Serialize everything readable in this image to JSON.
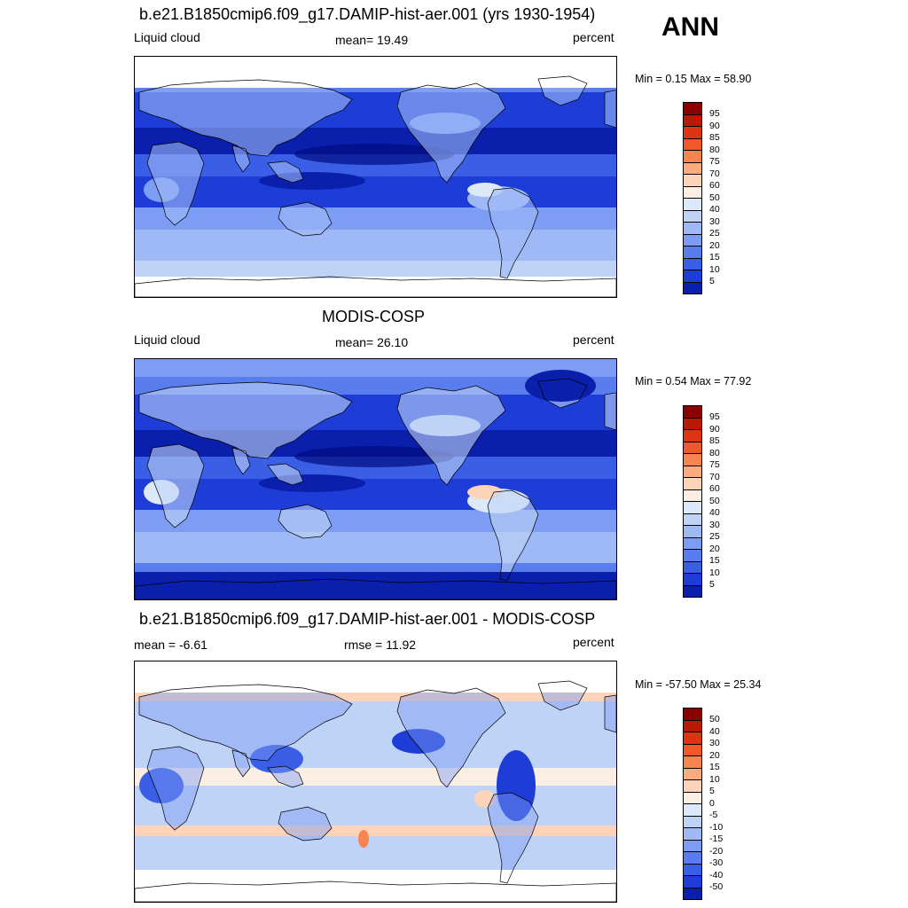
{
  "season": "ANN",
  "panels": [
    {
      "title": "b.e21.B1850cmip6.f09_g17.DAMIP-hist-aer.001 (yrs 1930-1954)",
      "left_label": "Liquid cloud",
      "center_label": "mean=  19.49",
      "right_label": "percent",
      "minmax": "Min =   0.15 Max =  58.90",
      "map": "test",
      "colorbar": "abs"
    },
    {
      "title": "MODIS-COSP",
      "left_label": "Liquid cloud",
      "center_label": "mean=  26.10",
      "right_label": "percent",
      "minmax": "Min =   0.54 Max =  77.92",
      "map": "reference",
      "colorbar": "abs"
    },
    {
      "title": "b.e21.B1850cmip6.f09_g17.DAMIP-hist-aer.001 - MODIS-COSP",
      "left_label": "mean =  -6.61",
      "center_label": "rmse =  11.92",
      "right_label": "percent",
      "minmax": "Min = -57.50 Max =  25.34",
      "map": "difference",
      "colorbar": "diff"
    }
  ],
  "colorbars": {
    "abs": {
      "levels": [
        "95",
        "90",
        "85",
        "80",
        "75",
        "70",
        "60",
        "50",
        "40",
        "30",
        "25",
        "20",
        "15",
        "10",
        "5"
      ],
      "colors": [
        "#8b0000",
        "#b81a05",
        "#dd3412",
        "#f2582a",
        "#f8844f",
        "#fbab7e",
        "#fdd3ba",
        "#fdeee4",
        "#dde9f9",
        "#bfd3f7",
        "#9fb9f6",
        "#7d9cf3",
        "#5a7ded",
        "#3a5ee6",
        "#1d3dd6",
        "#0a1fab",
        "#000b80"
      ]
    },
    "diff": {
      "levels": [
        "50",
        "40",
        "30",
        "20",
        "15",
        "10",
        "5",
        "0",
        "-5",
        "-10",
        "-15",
        "-20",
        "-30",
        "-40",
        "-50"
      ],
      "colors": [
        "#8b0000",
        "#b81a05",
        "#dd3412",
        "#f2582a",
        "#f8844f",
        "#fbab7e",
        "#fdd3ba",
        "#fdeee4",
        "#dde9f9",
        "#bfd3f7",
        "#9fb9f6",
        "#7d9cf3",
        "#5a7ded",
        "#3a5ee6",
        "#1d3dd6",
        "#0a1fab",
        "#000b80"
      ]
    }
  }
}
